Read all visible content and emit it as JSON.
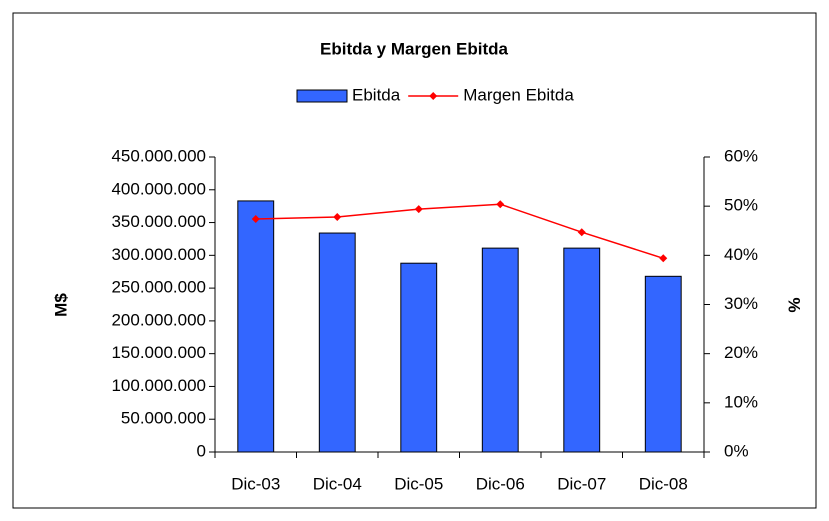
{
  "chart_data": {
    "type": "bar",
    "title": "Ebitda y Margen Ebitda",
    "categories": [
      "Dic-03",
      "Dic-04",
      "Dic-05",
      "Dic-06",
      "Dic-07",
      "Dic-08"
    ],
    "series": [
      {
        "name": "Ebitda",
        "color": "#3366ff",
        "type": "bar",
        "values": [
          383000000,
          334000000,
          288000000,
          311000000,
          311000000,
          268000000
        ]
      },
      {
        "name": "Margen Ebitda",
        "color": "#ff0000",
        "type": "line",
        "axis": "y2",
        "values": [
          47.4,
          47.8,
          49.4,
          50.4,
          44.7,
          39.4
        ]
      }
    ],
    "ylabel": "M$",
    "y2label": "%",
    "ylim": [
      0,
      450000000
    ],
    "yticks": [
      {
        "value": 0,
        "label": "0"
      },
      {
        "value": 50000000,
        "label": "50.000.000"
      },
      {
        "value": 100000000,
        "label": "100.000.000"
      },
      {
        "value": 150000000,
        "label": "150.000.000"
      },
      {
        "value": 200000000,
        "label": "200.000.000"
      },
      {
        "value": 250000000,
        "label": "250.000.000"
      },
      {
        "value": 300000000,
        "label": "300.000.000"
      },
      {
        "value": 350000000,
        "label": "350.000.000"
      },
      {
        "value": 400000000,
        "label": "400.000.000"
      },
      {
        "value": 450000000,
        "label": "450.000.000"
      }
    ],
    "y2lim": [
      0,
      60
    ],
    "y2ticks": [
      {
        "value": 0,
        "label": "0%"
      },
      {
        "value": 10,
        "label": "10%"
      },
      {
        "value": 20,
        "label": "20%"
      },
      {
        "value": 30,
        "label": "30%"
      },
      {
        "value": 40,
        "label": "40%"
      },
      {
        "value": 50,
        "label": "50%"
      },
      {
        "value": 60,
        "label": "60%"
      }
    ],
    "legend": "top"
  }
}
